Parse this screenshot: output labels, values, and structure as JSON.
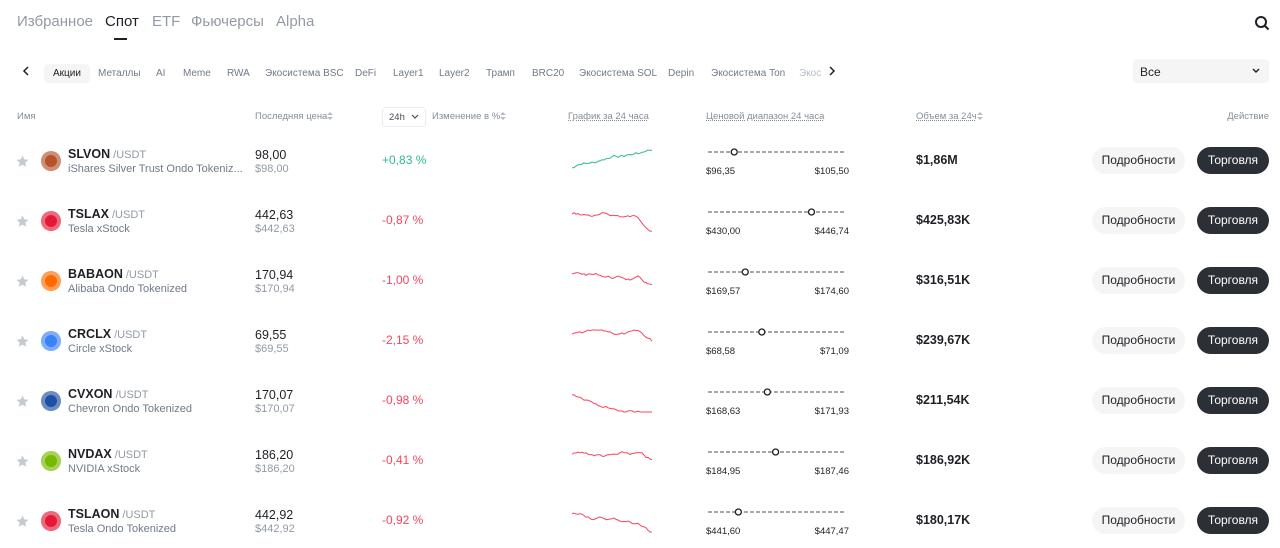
{
  "tabs": [
    "Избранное",
    "Спот",
    "ETF",
    "Фьючерсы",
    "Alpha"
  ],
  "categories": [
    "Акции",
    "Металлы",
    "AI",
    "Meme",
    "RWA",
    "Экосистема BSC",
    "DeFi",
    "Layer1",
    "Layer2",
    "Трамп",
    "BRC20",
    "Экосистема SOL",
    "Depin",
    "Экосистема Ton",
    "Экос"
  ],
  "filter": "Все",
  "columns": {
    "name": "Имя",
    "price": "Последняя цена",
    "period": "24h",
    "change": "Изменение в %",
    "chart": "График за 24 часа",
    "range": "Ценовой диапазон 24 часа",
    "volume": "Объем за 24ч",
    "action": "Действие"
  },
  "actions": {
    "details": "Подробности",
    "trade": "Торговля"
  },
  "rows": [
    {
      "symbol": "SLVON",
      "quote": "/USDT",
      "name": "iShares Silver Trust Ondo Tokeniz...",
      "price": "98,00",
      "price_usd": "$98,00",
      "change": "+0,83 %",
      "low": "$96,35",
      "high": "$105,50",
      "volume": "$1,86M"
    },
    {
      "symbol": "TSLAX",
      "quote": "/USDT",
      "name": "Tesla xStock",
      "price": "442,63",
      "price_usd": "$442,63",
      "change": "-0,87 %",
      "low": "$430,00",
      "high": "$446,74",
      "volume": "$425,83K"
    },
    {
      "symbol": "BABAON",
      "quote": "/USDT",
      "name": "Alibaba Ondo Tokenized",
      "price": "170,94",
      "price_usd": "$170,94",
      "change": "-1,00 %",
      "low": "$169,57",
      "high": "$174,60",
      "volume": "$316,51K"
    },
    {
      "symbol": "CRCLX",
      "quote": "/USDT",
      "name": "Circle xStock",
      "price": "69,55",
      "price_usd": "$69,55",
      "change": "-2,15 %",
      "low": "$68,58",
      "high": "$71,09",
      "volume": "$239,67K"
    },
    {
      "symbol": "CVXON",
      "quote": "/USDT",
      "name": "Chevron Ondo Tokenized",
      "price": "170,07",
      "price_usd": "$170,07",
      "change": "-0,98 %",
      "low": "$168,63",
      "high": "$171,93",
      "volume": "$211,54K"
    },
    {
      "symbol": "NVDAX",
      "quote": "/USDT",
      "name": "NVIDIA xStock",
      "price": "186,20",
      "price_usd": "$186,20",
      "change": "-0,41 %",
      "low": "$184,95",
      "high": "$187,46",
      "volume": "$186,92K"
    },
    {
      "symbol": "TSLAON",
      "quote": "/USDT",
      "name": "Tesla Ondo Tokenized",
      "price": "442,92",
      "price_usd": "$442,92",
      "change": "-0,92 %",
      "low": "$441,60",
      "high": "$447,47",
      "volume": "$180,17K"
    }
  ]
}
